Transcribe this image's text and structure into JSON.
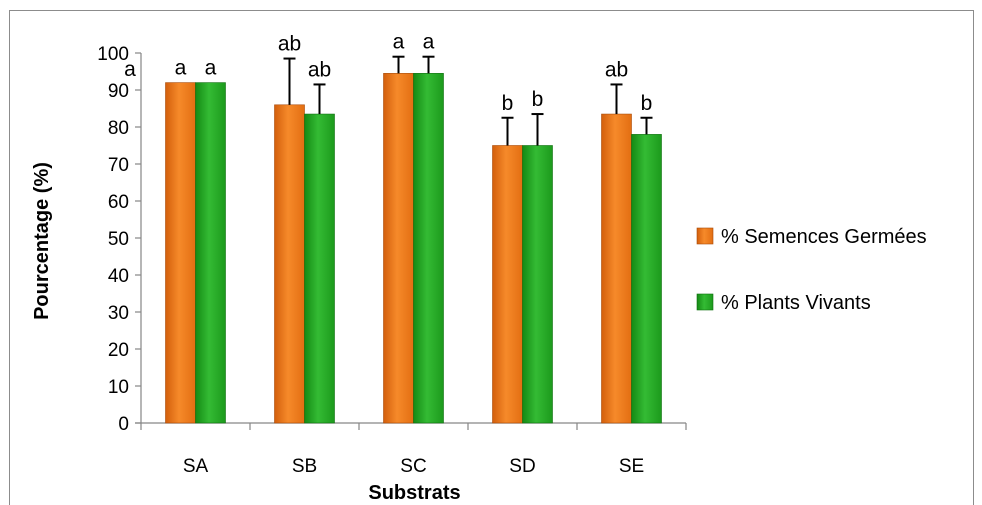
{
  "chart_data": {
    "type": "bar",
    "title": "",
    "xlabel": "Substrats",
    "ylabel": "Pourcentage (%)",
    "ylim": [
      0,
      100
    ],
    "yticks": [
      "0",
      "10",
      "20",
      "30",
      "40",
      "50",
      "60",
      "70",
      "80",
      "90",
      "100"
    ],
    "categories": [
      "SA",
      "SB",
      "SC",
      "SD",
      "SE"
    ],
    "series": [
      {
        "name": "% Semences Germées",
        "color": "#f07a1c",
        "values": [
          92,
          86,
          94.5,
          75,
          83.5
        ],
        "error": [
          0,
          12.5,
          4.5,
          7.5,
          8
        ],
        "significance": [
          "a",
          "ab",
          "a",
          "b",
          "ab"
        ]
      },
      {
        "name": "% Plants Vivants",
        "color": "#22a322",
        "values": [
          92,
          83.5,
          94.5,
          75,
          78
        ],
        "error": [
          0,
          8,
          4.5,
          8.5,
          4.5
        ],
        "significance": [
          "a",
          "ab",
          "a",
          "b",
          "b"
        ]
      }
    ],
    "annotations": [
      "a"
    ],
    "grid": false,
    "legend_position": "right"
  }
}
